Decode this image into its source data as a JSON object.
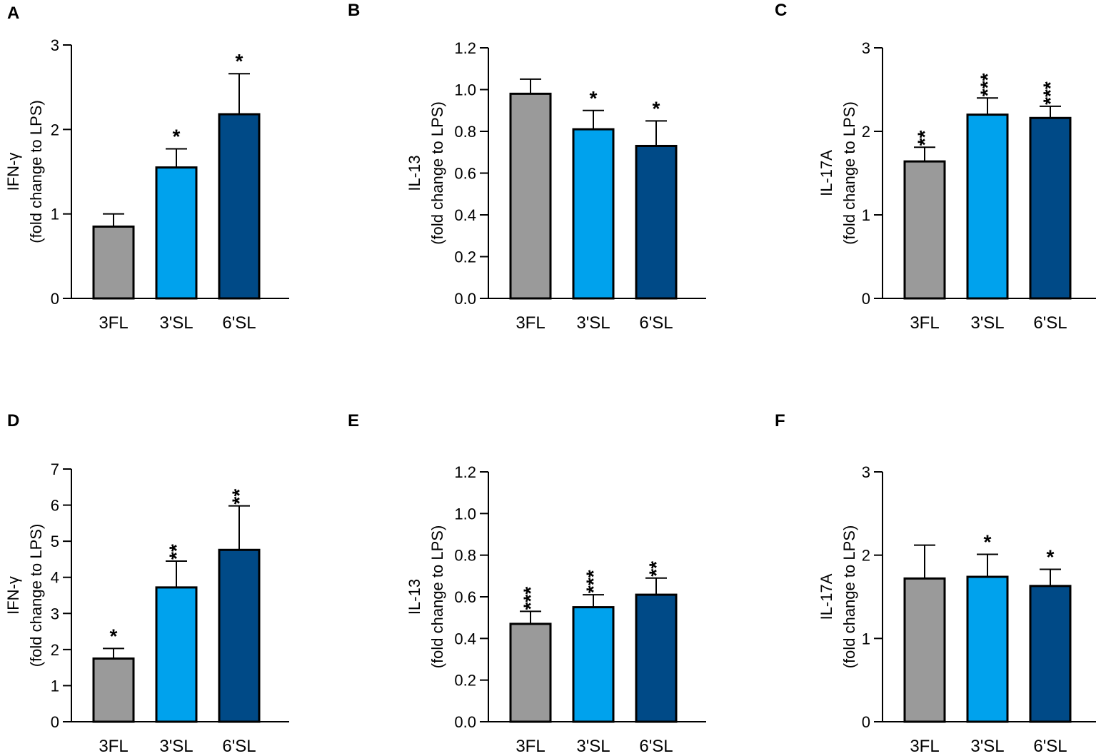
{
  "colors": {
    "3FL": "#9a9a9a",
    "3'SL": "#00a2ed",
    "6'SL": "#004a87"
  },
  "chart_data": [
    {
      "panel": "A",
      "type": "bar",
      "categories": [
        "3FL",
        "3'SL",
        "6'SL"
      ],
      "values": [
        0.85,
        1.55,
        2.18
      ],
      "errors": [
        0.15,
        0.22,
        0.48
      ],
      "significance": [
        "",
        "*",
        "*"
      ],
      "ylabel_line1": "IFN-γ",
      "ylabel_line2": "(fold change to LPS)",
      "ylim": [
        0,
        3
      ],
      "yticks": [
        0,
        1,
        2,
        3
      ],
      "ytick_labels": [
        "0",
        "1",
        "2",
        "3"
      ]
    },
    {
      "panel": "B",
      "type": "bar",
      "categories": [
        "3FL",
        "3'SL",
        "6'SL"
      ],
      "values": [
        0.98,
        0.81,
        0.73
      ],
      "errors": [
        0.07,
        0.09,
        0.12
      ],
      "significance": [
        "",
        "*",
        "*"
      ],
      "ylabel_line1": "IL-13",
      "ylabel_line2": "(fold change to LPS)",
      "ylim": [
        0,
        1.2
      ],
      "yticks": [
        0,
        0.2,
        0.4,
        0.6,
        0.8,
        1.0,
        1.2
      ],
      "ytick_labels": [
        "0.0",
        "0.2",
        "0.4",
        "0.6",
        "0.8",
        "1.0",
        "1.2"
      ]
    },
    {
      "panel": "C",
      "type": "bar",
      "categories": [
        "3FL",
        "3'SL",
        "6'SL"
      ],
      "values": [
        1.64,
        2.2,
        2.16
      ],
      "errors": [
        0.17,
        0.2,
        0.14
      ],
      "significance": [
        "**",
        "***",
        "***"
      ],
      "ylabel_line1": "IL-17A",
      "ylabel_line2": "(fold change to LPS)",
      "ylim": [
        0,
        3
      ],
      "yticks": [
        0,
        1,
        2,
        3
      ],
      "ytick_labels": [
        "0",
        "1",
        "2",
        "3"
      ]
    },
    {
      "panel": "D",
      "type": "bar",
      "categories": [
        "3FL",
        "3'SL",
        "6'SL"
      ],
      "values": [
        1.75,
        3.72,
        4.76
      ],
      "errors": [
        0.28,
        0.73,
        1.22
      ],
      "significance": [
        "*",
        "**",
        "**"
      ],
      "ylabel_line1": "IFN-γ",
      "ylabel_line2": "(fold change to  LPS)",
      "ylim": [
        0,
        7
      ],
      "yticks": [
        0,
        1,
        2,
        3,
        4,
        5,
        6,
        7
      ],
      "ytick_labels": [
        "0",
        "1",
        "2",
        "3",
        "4",
        "5",
        "6",
        "7"
      ]
    },
    {
      "panel": "E",
      "type": "bar",
      "categories": [
        "3FL",
        "3'SL",
        "6'SL"
      ],
      "values": [
        0.47,
        0.55,
        0.61
      ],
      "errors": [
        0.06,
        0.06,
        0.08
      ],
      "significance": [
        "***",
        "***",
        "**"
      ],
      "ylabel_line1": "IL-13",
      "ylabel_line2": "(fold change to LPS)",
      "ylim": [
        0,
        1.2
      ],
      "yticks": [
        0,
        0.2,
        0.4,
        0.6,
        0.8,
        1.0,
        1.2
      ],
      "ytick_labels": [
        "0.0",
        "0.2",
        "0.4",
        "0.6",
        "0.8",
        "1.0",
        "1.2"
      ]
    },
    {
      "panel": "F",
      "type": "bar",
      "categories": [
        "3FL",
        "3'SL",
        "6'SL"
      ],
      "values": [
        1.72,
        1.74,
        1.63
      ],
      "errors": [
        0.4,
        0.27,
        0.2
      ],
      "significance": [
        "",
        "*",
        "*"
      ],
      "ylabel_line1": "IL-17A",
      "ylabel_line2": "(fold change to  LPS)",
      "ylim": [
        0,
        3
      ],
      "yticks": [
        0,
        1,
        2,
        3
      ],
      "ytick_labels": [
        "0",
        "1",
        "2",
        "3"
      ]
    }
  ]
}
